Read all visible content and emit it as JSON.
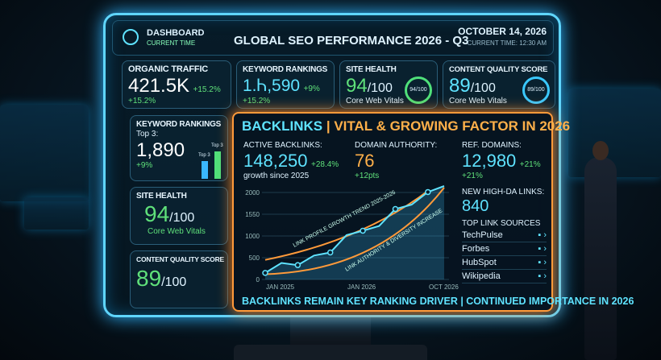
{
  "header": {
    "app": "DASHBOARD",
    "app_sub": "CURRENT TIME",
    "title": "GLOBAL SEO PERFORMANCE 2026 - Q3",
    "date": "OCTOBER 14, 2026",
    "time": "CURRENT TIME: 12:30 AM"
  },
  "top_cards": [
    {
      "label": "ORGANIC TRAFFIC",
      "value": "421.5K",
      "delta": "+15.2%",
      "sub": "+15.2%"
    },
    {
      "label": "KEYWORD RANKINGS",
      "value": "1.Ꮒ,590",
      "delta": "+9%",
      "sub": "+15.2%"
    },
    {
      "label": "SITE HEALTH",
      "value": "94",
      "of": "/100",
      "sub": "Core Web Vitals",
      "gauge": "94/100"
    },
    {
      "label": "CONTENT QUALITY SCORE",
      "value": "89",
      "of": "/100",
      "sub": "Core Web Vitals",
      "gauge": "89/100"
    }
  ],
  "side_cards": [
    {
      "label": "KEYWORD RANKINGS",
      "pre": "Top 3:",
      "value": "1,890",
      "delta": "+9%",
      "bar1": "Top 3",
      "bar2": "Top 3"
    },
    {
      "label": "SITE HEALTH",
      "value": "94",
      "of": "/100",
      "sub": "Core Web Vitals"
    },
    {
      "label": "CONTENT QUALITY SCORE",
      "value": "89",
      "of": "/100"
    }
  ],
  "backlinks": {
    "title_a": "BACKLINKS",
    "title_b": "| VITAL & GROWING FACTOR IN 2026",
    "active_label": "ACTIVE BACKLINKS:",
    "active_value": "148,250",
    "active_delta": "+28.4%",
    "active_sub": "growth since 2025",
    "da_label": "DOMAIN AUTHORITY:",
    "da_value": "76",
    "da_delta": "+12pts",
    "ref_label": "REF. DOMAINS:",
    "ref_value": "12,980",
    "ref_delta": "+21%",
    "ref_sub": "+21%",
    "hda_label": "NEW HIGH-DA LINKS:",
    "hda_value": "840",
    "sources_label": "TOP LINK SOURCES",
    "sources": [
      "TechPulse",
      "Forbes",
      "HubSpot",
      "Wikipedia"
    ],
    "footer": "BACKLINKS REMAIN KEY RANKING DRIVER | CONTINUED IMPORTANCE IN 2026"
  },
  "chart_data": {
    "type": "line",
    "yticks": [
      "2000",
      "1550",
      "1000",
      "500",
      "0"
    ],
    "ylim": [
      0,
      2000
    ],
    "xticks": [
      "JAN 2025",
      "JAN 2026",
      "OCT 2026"
    ],
    "annotations": [
      "LINK PROFILE GROWTH TREND 2025-2026",
      "LINK AUTHORITY & DIVERSITY INCREASE"
    ],
    "series": [
      {
        "values": [
          150,
          380,
          330,
          550,
          620,
          1020,
          1120,
          1230,
          1620,
          1720,
          2010,
          2300
        ]
      }
    ],
    "colors": {
      "line": "#5fe3ff",
      "trend": "#ff9a3a"
    }
  }
}
